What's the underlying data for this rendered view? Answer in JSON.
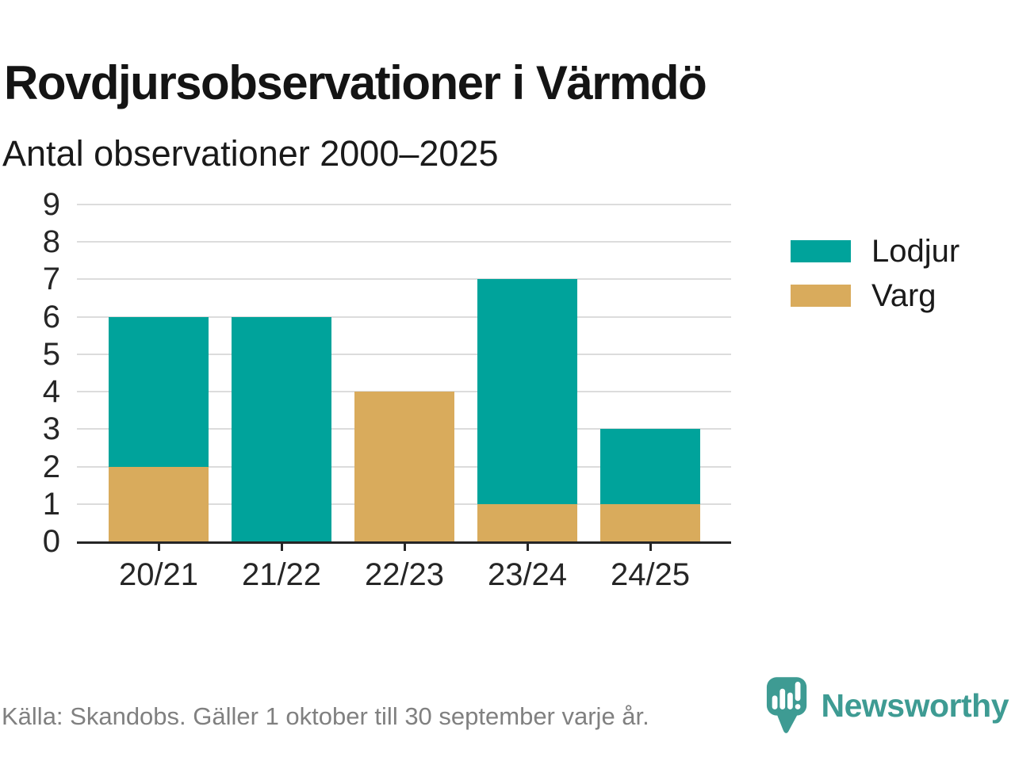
{
  "header": {
    "title": "Rovdjursobservationer i Värmdö",
    "subtitle": "Antal observationer 2000–2025"
  },
  "chart_data": {
    "type": "bar",
    "stacked": true,
    "title": "Rovdjursobservationer i Värmdö",
    "subtitle": "Antal observationer 2000–2025",
    "categories": [
      "20/21",
      "21/22",
      "22/23",
      "23/24",
      "24/25"
    ],
    "series": [
      {
        "name": "Lodjur",
        "color": "#00A39B",
        "values": [
          4,
          6,
          0,
          6,
          2
        ]
      },
      {
        "name": "Varg",
        "color": "#D9AB5C",
        "values": [
          2,
          0,
          4,
          1,
          1
        ]
      }
    ],
    "stack_order_bottom_to_top": [
      "Varg",
      "Lodjur"
    ],
    "totals": [
      6,
      6,
      4,
      7,
      3
    ],
    "xlabel": "",
    "ylabel": "",
    "ylim": [
      0,
      9
    ],
    "yticks": [
      0,
      1,
      2,
      3,
      4,
      5,
      6,
      7,
      8,
      9
    ],
    "grid": true,
    "legend_position": "right"
  },
  "footer": {
    "source": "Källa: Skandobs. Gäller 1 oktober till 30 september varje år.",
    "brand": "Newsworthy"
  },
  "colors": {
    "lodjur": "#00A39B",
    "varg": "#D9AB5C",
    "brand_teal": "#3E9B93",
    "grid": "#DCDCDC",
    "axis": "#262626",
    "text": "#1A1A1A",
    "muted_text": "#808080"
  }
}
